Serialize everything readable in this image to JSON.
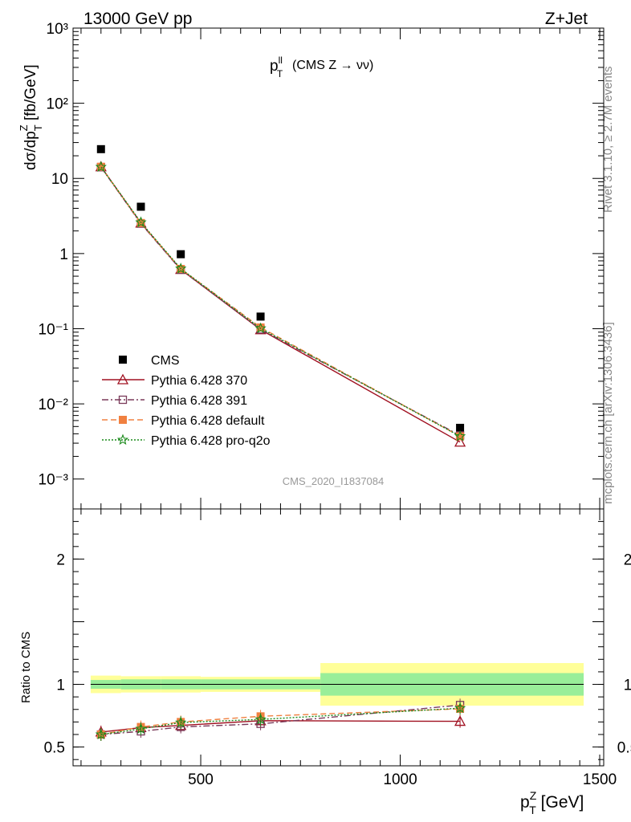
{
  "header": {
    "left_title": "13000 GeV pp",
    "right_title": "Z+Jet"
  },
  "side": {
    "rivet": "Rivet 3.1.10, ≥ 2.7M events",
    "mcplots": "mcplots.cern.ch [arXiv:1306.3436]"
  },
  "chart_data": [
    {
      "type": "scatter",
      "title": "p_T^ll (CMS Z → νν)",
      "title_parts": {
        "base": "p",
        "sub": "T",
        "sup": "ll",
        "rest": "(CMS Z → νν)"
      },
      "ylabel": "dσ/dp_T^Z [fb/GeV]",
      "ylabel_parts": {
        "a": "dσ/dp",
        "sub": "T",
        "sup": "Z",
        "b": " [fb/GeV]"
      },
      "yscale": "log",
      "ylim": [
        0.0004,
        1000
      ],
      "xlim": [
        180,
        1510
      ],
      "watermark": "CMS_2020_I1837084",
      "legend_position": "lower-left",
      "x": [
        250,
        350,
        450,
        650,
        1150
      ],
      "series": [
        {
          "name": "CMS",
          "color": "#000000",
          "marker": "filled-square",
          "line": "none",
          "values": [
            24.5,
            4.2,
            0.98,
            0.145,
            0.0048
          ]
        },
        {
          "name": "Pythia 6.428 370",
          "color": "#a01020",
          "marker": "open-triangle",
          "line": "solid",
          "values": [
            14.3,
            2.55,
            0.615,
            0.097,
            0.0031
          ]
        },
        {
          "name": "Pythia 6.428 391",
          "color": "#7a3a5a",
          "marker": "open-square",
          "line": "dashdot",
          "values": [
            14.1,
            2.5,
            0.61,
            0.098,
            0.0038
          ]
        },
        {
          "name": "Pythia 6.428 default",
          "color": "#f08040",
          "marker": "filled-square",
          "line": "dashed",
          "values": [
            14.3,
            2.55,
            0.625,
            0.104,
            0.0037
          ]
        },
        {
          "name": "Pythia 6.428 pro-q2o",
          "color": "#1a8a1a",
          "marker": "open-star",
          "line": "dotted",
          "values": [
            14.2,
            2.6,
            0.63,
            0.101,
            0.0037
          ]
        }
      ],
      "y_tick_labels": [
        "10⁻³",
        "10⁻²",
        "10⁻¹",
        "1",
        "10",
        "10²",
        "10³"
      ]
    },
    {
      "type": "line",
      "ylabel": "Ratio to CMS",
      "xlabel": "p_T^Z [GeV]",
      "xlabel_parts": {
        "base": "p",
        "sub": "T",
        "sup": "Z",
        "rest": " [GeV]"
      },
      "ylim": [
        0.35,
        2.4
      ],
      "xlim": [
        180,
        1510
      ],
      "x_ticks": [
        500,
        1000,
        1500
      ],
      "y_ticks": [
        0.5,
        1,
        2
      ],
      "band_edges": [
        200,
        300,
        400,
        500,
        800,
        1500
      ],
      "band_stat": [
        0.035,
        0.04,
        0.04,
        0.04,
        0.09
      ],
      "band_total": [
        0.07,
        0.065,
        0.065,
        0.06,
        0.17
      ],
      "x": [
        250,
        350,
        450,
        650,
        1150
      ],
      "series": [
        {
          "name": "Pythia 6.428 370",
          "values": [
            0.62,
            0.655,
            0.672,
            0.71,
            0.705
          ]
        },
        {
          "name": "Pythia 6.428 391",
          "values": [
            0.6,
            0.625,
            0.66,
            0.685,
            0.835
          ]
        },
        {
          "name": "Pythia 6.428 default",
          "values": [
            0.6,
            0.66,
            0.7,
            0.745,
            0.805
          ]
        },
        {
          "name": "Pythia 6.428 pro-q2o",
          "values": [
            0.6,
            0.645,
            0.695,
            0.72,
            0.81
          ]
        }
      ]
    }
  ]
}
